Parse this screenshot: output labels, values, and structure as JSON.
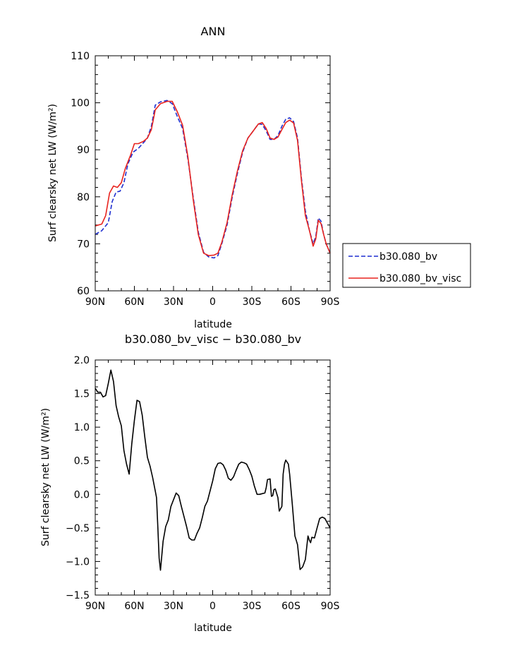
{
  "chart_data": [
    {
      "type": "line",
      "title": "ANN",
      "xlabel": "latitude",
      "ylabel": "Surf clearsky net LW (W/m²)",
      "xlim": [
        90,
        -90
      ],
      "ylim": [
        60,
        110
      ],
      "xticks": [
        {
          "v": 90,
          "label": "90N"
        },
        {
          "v": 60,
          "label": "60N"
        },
        {
          "v": 30,
          "label": "30N"
        },
        {
          "v": 0,
          "label": "0"
        },
        {
          "v": -30,
          "label": "30S"
        },
        {
          "v": -60,
          "label": "60S"
        },
        {
          "v": -90,
          "label": "90S"
        }
      ],
      "yticks": [
        60,
        70,
        80,
        90,
        100,
        110
      ],
      "grid": false,
      "legend_placement": "right",
      "series": [
        {
          "name": "b30.080_bv",
          "color": "#1f2fd0",
          "dash": "dashed",
          "points": [
            [
              90,
              72
            ],
            [
              85,
              72.8
            ],
            [
              80,
              74.5
            ],
            [
              77,
              79
            ],
            [
              74,
              81
            ],
            [
              71,
              81.2
            ],
            [
              68,
              83
            ],
            [
              65,
              87
            ],
            [
              61,
              89.5
            ],
            [
              57,
              90.3
            ],
            [
              53,
              91.5
            ],
            [
              50,
              92.5
            ],
            [
              47,
              95
            ],
            [
              44,
              99.5
            ],
            [
              40,
              100.2
            ],
            [
              35,
              100.5
            ],
            [
              31,
              99.8
            ],
            [
              27,
              97
            ],
            [
              23,
              94.5
            ],
            [
              19,
              88
            ],
            [
              15,
              80
            ],
            [
              11,
              72.5
            ],
            [
              7,
              68.2
            ],
            [
              3,
              67.2
            ],
            [
              -1,
              67
            ],
            [
              -4,
              67.5
            ],
            [
              -7,
              70
            ],
            [
              -11,
              74
            ],
            [
              -15,
              80
            ],
            [
              -19,
              85
            ],
            [
              -23,
              89.5
            ],
            [
              -27,
              92.5
            ],
            [
              -31,
              94
            ],
            [
              -35,
              95.5
            ],
            [
              -38,
              95.4
            ],
            [
              -41,
              94
            ],
            [
              -44,
              92.2
            ],
            [
              -47,
              92.2
            ],
            [
              -50,
              93
            ],
            [
              -53,
              95
            ],
            [
              -56,
              96.5
            ],
            [
              -59,
              96.8
            ],
            [
              -62,
              96
            ],
            [
              -65,
              92.5
            ],
            [
              -68,
              84
            ],
            [
              -71,
              77
            ],
            [
              -74,
              73
            ],
            [
              -77,
              70
            ],
            [
              -79,
              71.5
            ],
            [
              -81,
              75.5
            ],
            [
              -83,
              74.8
            ],
            [
              -85,
              72
            ],
            [
              -87,
              70
            ],
            [
              -90,
              68
            ]
          ]
        },
        {
          "name": "b30.080_bv_visc",
          "color": "#e8231e",
          "dash": "solid",
          "points": [
            [
              90,
              73.8
            ],
            [
              85,
              74.2
            ],
            [
              82,
              76
            ],
            [
              79,
              80.8
            ],
            [
              76,
              82.3
            ],
            [
              73,
              82
            ],
            [
              70,
              83
            ],
            [
              67,
              86
            ],
            [
              63,
              88.8
            ],
            [
              60,
              91.3
            ],
            [
              57,
              91.3
            ],
            [
              53,
              91.8
            ],
            [
              50,
              92.5
            ],
            [
              47,
              94.3
            ],
            [
              44,
              98.5
            ],
            [
              40,
              99.8
            ],
            [
              35,
              100.3
            ],
            [
              31,
              100.3
            ],
            [
              27,
              98
            ],
            [
              23,
              95.2
            ],
            [
              19,
              88.5
            ],
            [
              15,
              79.5
            ],
            [
              11,
              72
            ],
            [
              7,
              68
            ],
            [
              3,
              67.5
            ],
            [
              -1,
              67.6
            ],
            [
              -4,
              68
            ],
            [
              -7,
              70.3
            ],
            [
              -11,
              74.5
            ],
            [
              -15,
              80.5
            ],
            [
              -19,
              85.5
            ],
            [
              -23,
              89.8
            ],
            [
              -27,
              92.5
            ],
            [
              -31,
              94
            ],
            [
              -35,
              95.5
            ],
            [
              -38,
              95.8
            ],
            [
              -41,
              94.5
            ],
            [
              -44,
              92.5
            ],
            [
              -47,
              92.2
            ],
            [
              -50,
              92.7
            ],
            [
              -53,
              94.3
            ],
            [
              -56,
              95.8
            ],
            [
              -59,
              96.3
            ],
            [
              -62,
              95.7
            ],
            [
              -65,
              92
            ],
            [
              -68,
              83.5
            ],
            [
              -71,
              76
            ],
            [
              -74,
              73
            ],
            [
              -77,
              69.5
            ],
            [
              -79,
              71
            ],
            [
              -81,
              75
            ],
            [
              -83,
              74.3
            ],
            [
              -85,
              72
            ],
            [
              -87,
              70
            ],
            [
              -90,
              68
            ]
          ]
        }
      ]
    },
    {
      "type": "line",
      "title": "b30.080_bv_visc − b30.080_bv",
      "xlabel": "latitude",
      "ylabel": "Surf clearsky net LW (W/m²)",
      "xlim": [
        90,
        -90
      ],
      "ylim": [
        -1.5,
        2.0
      ],
      "xticks": [
        {
          "v": 90,
          "label": "90N"
        },
        {
          "v": 60,
          "label": "60N"
        },
        {
          "v": 30,
          "label": "30N"
        },
        {
          "v": 0,
          "label": "0"
        },
        {
          "v": -30,
          "label": "30S"
        },
        {
          "v": -60,
          "label": "60S"
        },
        {
          "v": -90,
          "label": "90S"
        }
      ],
      "yticks": [
        {
          "v": -1.5,
          "label": "−1.5"
        },
        {
          "v": -1.0,
          "label": "−1.0"
        },
        {
          "v": -0.5,
          "label": "−0.5"
        },
        {
          "v": 0.0,
          "label": "0.0"
        },
        {
          "v": 0.5,
          "label": "0.5"
        },
        {
          "v": 1.0,
          "label": "1.0"
        },
        {
          "v": 1.5,
          "label": "1.5"
        },
        {
          "v": 2.0,
          "label": "2.0"
        }
      ],
      "grid": false,
      "series": [
        {
          "color": "#000000",
          "dash": "solid",
          "points": [
            [
              90,
              1.58
            ],
            [
              88,
              1.52
            ],
            [
              86,
              1.52
            ],
            [
              84,
              1.45
            ],
            [
              82,
              1.47
            ],
            [
              80,
              1.65
            ],
            [
              78,
              1.85
            ],
            [
              76,
              1.68
            ],
            [
              74,
              1.32
            ],
            [
              72,
              1.15
            ],
            [
              70,
              1.02
            ],
            [
              68,
              0.65
            ],
            [
              66,
              0.45
            ],
            [
              64,
              0.3
            ],
            [
              62,
              0.75
            ],
            [
              60,
              1.1
            ],
            [
              58,
              1.4
            ],
            [
              56,
              1.38
            ],
            [
              54,
              1.18
            ],
            [
              52,
              0.85
            ],
            [
              50,
              0.55
            ],
            [
              48,
              0.42
            ],
            [
              46,
              0.25
            ],
            [
              44,
              0.05
            ],
            [
              43,
              -0.05
            ],
            [
              42,
              -0.5
            ],
            [
              41,
              -0.95
            ],
            [
              40,
              -1.13
            ],
            [
              38,
              -0.7
            ],
            [
              36,
              -0.48
            ],
            [
              34,
              -0.38
            ],
            [
              32,
              -0.18
            ],
            [
              30,
              -0.08
            ],
            [
              28,
              0.02
            ],
            [
              26,
              -0.02
            ],
            [
              24,
              -0.18
            ],
            [
              22,
              -0.33
            ],
            [
              20,
              -0.48
            ],
            [
              18,
              -0.65
            ],
            [
              16,
              -0.68
            ],
            [
              14,
              -0.68
            ],
            [
              12,
              -0.58
            ],
            [
              10,
              -0.5
            ],
            [
              8,
              -0.35
            ],
            [
              6,
              -0.18
            ],
            [
              4,
              -0.1
            ],
            [
              2,
              0.05
            ],
            [
              0,
              0.2
            ],
            [
              -2,
              0.38
            ],
            [
              -4,
              0.46
            ],
            [
              -6,
              0.47
            ],
            [
              -8,
              0.44
            ],
            [
              -10,
              0.36
            ],
            [
              -12,
              0.24
            ],
            [
              -14,
              0.21
            ],
            [
              -16,
              0.26
            ],
            [
              -18,
              0.36
            ],
            [
              -20,
              0.45
            ],
            [
              -22,
              0.48
            ],
            [
              -24,
              0.47
            ],
            [
              -26,
              0.45
            ],
            [
              -28,
              0.37
            ],
            [
              -30,
              0.27
            ],
            [
              -32,
              0.12
            ],
            [
              -34,
              0.0
            ],
            [
              -36,
              0.0
            ],
            [
              -38,
              0.01
            ],
            [
              -40,
              0.02
            ],
            [
              -41,
              0.1
            ],
            [
              -42,
              0.22
            ],
            [
              -44,
              0.23
            ],
            [
              -45,
              -0.03
            ],
            [
              -46,
              -0.02
            ],
            [
              -47,
              0.07
            ],
            [
              -48,
              0.08
            ],
            [
              -50,
              -0.05
            ],
            [
              -51,
              -0.25
            ],
            [
              -53,
              -0.18
            ],
            [
              -54,
              0.3
            ],
            [
              -55,
              0.45
            ],
            [
              -56,
              0.51
            ],
            [
              -58,
              0.45
            ],
            [
              -59,
              0.3
            ],
            [
              -61,
              -0.15
            ],
            [
              -63,
              -0.62
            ],
            [
              -65,
              -0.75
            ],
            [
              -67,
              -1.12
            ],
            [
              -69,
              -1.08
            ],
            [
              -71,
              -0.97
            ],
            [
              -73,
              -0.62
            ],
            [
              -74,
              -0.68
            ],
            [
              -75,
              -0.72
            ],
            [
              -76,
              -0.64
            ],
            [
              -78,
              -0.65
            ],
            [
              -80,
              -0.5
            ],
            [
              -82,
              -0.36
            ],
            [
              -84,
              -0.34
            ],
            [
              -86,
              -0.36
            ],
            [
              -88,
              -0.43
            ],
            [
              -90,
              -0.5
            ]
          ]
        }
      ]
    }
  ]
}
